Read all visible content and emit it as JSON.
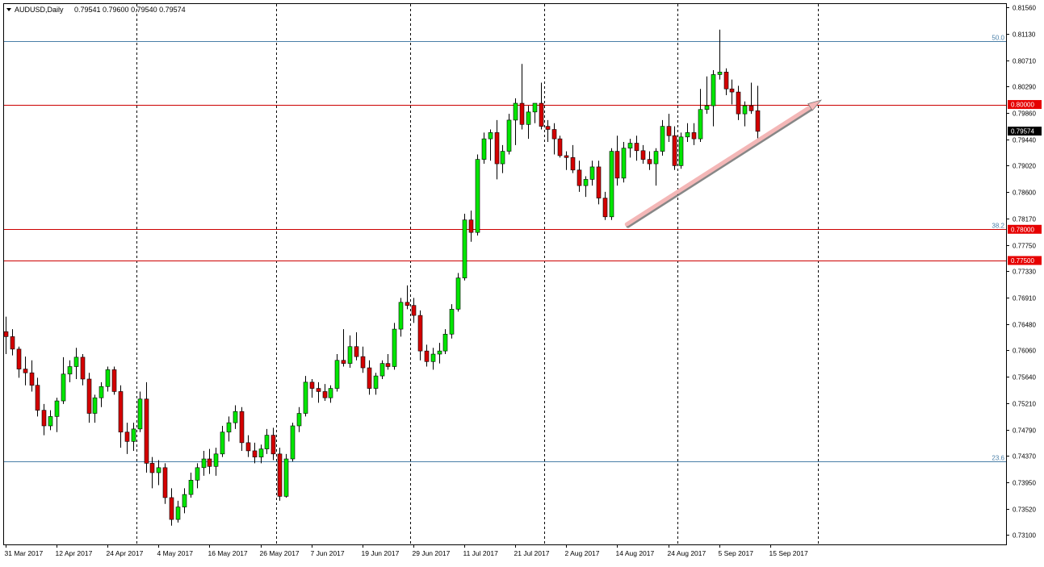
{
  "header": {
    "symbol": "AUDUSD,Daily",
    "ohlc": "0.79541 0.79600 0.79540 0.79574"
  },
  "colors": {
    "background": "#ffffff",
    "bull_candle": "#00e600",
    "bear_candle": "#d40000",
    "wick": "#000000",
    "fib_line": "#4a7fa8",
    "level_line": "#cc0000",
    "price_tag": "#e60000",
    "current_tag": "#000000",
    "trend_arrow": "#f4b7b7"
  },
  "chart_data": {
    "type": "candlestick",
    "title": "AUDUSD,Daily",
    "grid": "vertical dashed",
    "y_range": [
      0.7295,
      0.8161
    ],
    "y_ticks": [
      "0.81560",
      "0.81130",
      "0.80710",
      "0.80290",
      "0.79860",
      "0.79440",
      "0.79020",
      "0.78600",
      "0.78170",
      "0.77750",
      "0.77330",
      "0.76910",
      "0.76480",
      "0.76060",
      "0.75640",
      "0.75210",
      "0.74790",
      "0.74370",
      "0.73950",
      "0.73520",
      "0.73100"
    ],
    "x_labels": [
      {
        "label": "31 Mar 2017",
        "index": 0
      },
      {
        "label": "12 Apr 2017",
        "index": 8
      },
      {
        "label": "24 Apr 2017",
        "index": 16
      },
      {
        "label": "4 May 2017",
        "index": 24
      },
      {
        "label": "16 May 2017",
        "index": 32
      },
      {
        "label": "26 May 2017",
        "index": 40
      },
      {
        "label": "7 Jun 2017",
        "index": 48
      },
      {
        "label": "19 Jun 2017",
        "index": 56
      },
      {
        "label": "29 Jun 2017",
        "index": 64
      },
      {
        "label": "11 Jul 2017",
        "index": 72
      },
      {
        "label": "21 Jul 2017",
        "index": 80
      },
      {
        "label": "2 Aug 2017",
        "index": 88
      },
      {
        "label": "14 Aug 2017",
        "index": 96
      },
      {
        "label": "24 Aug 2017",
        "index": 104
      },
      {
        "label": "5 Sep 2017",
        "index": 112
      },
      {
        "label": "15 Sep 2017",
        "index": 120
      }
    ],
    "separator_indices": [
      20.5,
      42.5,
      63.5,
      84.5,
      105.5,
      127.5
    ],
    "fib_levels": [
      {
        "label": "50.0",
        "price": 0.8101
      },
      {
        "label": "38.2",
        "price": 0.78
      },
      {
        "label": "23.6",
        "price": 0.7428
      }
    ],
    "horizontal_levels": [
      {
        "label": "0.80000",
        "price": 0.8
      },
      {
        "label": "0.78000",
        "price": 0.78
      },
      {
        "label": "0.77500",
        "price": 0.775
      }
    ],
    "current_price": {
      "label": "0.79574",
      "price": 0.79574
    },
    "trend_arrow": {
      "from": {
        "index": 97.5,
        "price": 0.7808
      },
      "to": {
        "index": 128,
        "price": 0.8007
      }
    },
    "candles": [
      [
        0.7636,
        0.766,
        0.76,
        0.7628
      ],
      [
        0.7628,
        0.764,
        0.7598,
        0.7608
      ],
      [
        0.7608,
        0.7612,
        0.7562,
        0.7576
      ],
      [
        0.7576,
        0.7596,
        0.755,
        0.757
      ],
      [
        0.757,
        0.759,
        0.754,
        0.755
      ],
      [
        0.755,
        0.7562,
        0.75,
        0.751
      ],
      [
        0.751,
        0.752,
        0.747,
        0.7485
      ],
      [
        0.7485,
        0.751,
        0.7478,
        0.75
      ],
      [
        0.75,
        0.753,
        0.7475,
        0.7525
      ],
      [
        0.7525,
        0.7595,
        0.752,
        0.7568
      ],
      [
        0.7568,
        0.759,
        0.7555,
        0.758
      ],
      [
        0.758,
        0.761,
        0.756,
        0.7595
      ],
      [
        0.7595,
        0.76,
        0.755,
        0.756
      ],
      [
        0.756,
        0.757,
        0.749,
        0.7505
      ],
      [
        0.7505,
        0.7535,
        0.749,
        0.753
      ],
      [
        0.753,
        0.7555,
        0.7515,
        0.7548
      ],
      [
        0.7548,
        0.758,
        0.754,
        0.7575
      ],
      [
        0.7575,
        0.758,
        0.7535,
        0.754
      ],
      [
        0.754,
        0.755,
        0.745,
        0.7475
      ],
      [
        0.7475,
        0.749,
        0.744,
        0.746
      ],
      [
        0.746,
        0.749,
        0.7445,
        0.748
      ],
      [
        0.748,
        0.754,
        0.7475,
        0.7528
      ],
      [
        0.7528,
        0.7555,
        0.741,
        0.7425
      ],
      [
        0.7425,
        0.7435,
        0.7385,
        0.741
      ],
      [
        0.741,
        0.743,
        0.739,
        0.7418
      ],
      [
        0.7418,
        0.7425,
        0.736,
        0.737
      ],
      [
        0.737,
        0.7385,
        0.7325,
        0.7335
      ],
      [
        0.7335,
        0.7365,
        0.733,
        0.7355
      ],
      [
        0.7355,
        0.7385,
        0.7345,
        0.7375
      ],
      [
        0.7375,
        0.741,
        0.737,
        0.7398
      ],
      [
        0.7398,
        0.7425,
        0.7385,
        0.7418
      ],
      [
        0.7418,
        0.7445,
        0.7405,
        0.7432
      ],
      [
        0.7432,
        0.7448,
        0.7408,
        0.742
      ],
      [
        0.742,
        0.745,
        0.7405,
        0.744
      ],
      [
        0.744,
        0.7485,
        0.7435,
        0.7475
      ],
      [
        0.7475,
        0.75,
        0.746,
        0.749
      ],
      [
        0.749,
        0.7518,
        0.748,
        0.7508
      ],
      [
        0.7508,
        0.7515,
        0.7445,
        0.7458
      ],
      [
        0.7458,
        0.747,
        0.7435,
        0.7445
      ],
      [
        0.7445,
        0.7458,
        0.7425,
        0.7435
      ],
      [
        0.7435,
        0.7455,
        0.7425,
        0.7448
      ],
      [
        0.7448,
        0.748,
        0.744,
        0.747
      ],
      [
        0.747,
        0.7482,
        0.743,
        0.744
      ],
      [
        0.744,
        0.745,
        0.7365,
        0.7372
      ],
      [
        0.7372,
        0.744,
        0.737,
        0.7432
      ],
      [
        0.7432,
        0.749,
        0.7428,
        0.7485
      ],
      [
        0.7485,
        0.7515,
        0.7475,
        0.7505
      ],
      [
        0.7505,
        0.7565,
        0.75,
        0.7555
      ],
      [
        0.7555,
        0.756,
        0.753,
        0.7545
      ],
      [
        0.7545,
        0.7555,
        0.7522,
        0.754
      ],
      [
        0.754,
        0.7552,
        0.7525,
        0.753
      ],
      [
        0.753,
        0.755,
        0.7522,
        0.7545
      ],
      [
        0.7545,
        0.76,
        0.754,
        0.759
      ],
      [
        0.759,
        0.764,
        0.758,
        0.7585
      ],
      [
        0.7585,
        0.763,
        0.7578,
        0.7612
      ],
      [
        0.7612,
        0.7635,
        0.759,
        0.7596
      ],
      [
        0.7596,
        0.7612,
        0.757,
        0.7578
      ],
      [
        0.7578,
        0.759,
        0.7535,
        0.7545
      ],
      [
        0.7545,
        0.757,
        0.7535,
        0.7565
      ],
      [
        0.7565,
        0.759,
        0.756,
        0.7585
      ],
      [
        0.7585,
        0.76,
        0.7575,
        0.758
      ],
      [
        0.758,
        0.765,
        0.7575,
        0.764
      ],
      [
        0.764,
        0.769,
        0.7628,
        0.7683
      ],
      [
        0.7683,
        0.771,
        0.7672,
        0.7678
      ],
      [
        0.7678,
        0.769,
        0.765,
        0.7662
      ],
      [
        0.7662,
        0.767,
        0.759,
        0.7605
      ],
      [
        0.7605,
        0.7615,
        0.758,
        0.7588
      ],
      [
        0.7588,
        0.761,
        0.7575,
        0.76
      ],
      [
        0.76,
        0.7618,
        0.7585,
        0.7605
      ],
      [
        0.7605,
        0.764,
        0.76,
        0.7632
      ],
      [
        0.7632,
        0.768,
        0.7625,
        0.7672
      ],
      [
        0.7672,
        0.773,
        0.7668,
        0.7722
      ],
      [
        0.7722,
        0.7825,
        0.7718,
        0.7815
      ],
      [
        0.7815,
        0.783,
        0.778,
        0.7795
      ],
      [
        0.7795,
        0.792,
        0.779,
        0.7912
      ],
      [
        0.7912,
        0.7955,
        0.7905,
        0.7945
      ],
      [
        0.7945,
        0.796,
        0.791,
        0.7955
      ],
      [
        0.7955,
        0.7975,
        0.788,
        0.7905
      ],
      [
        0.7905,
        0.7935,
        0.789,
        0.7925
      ],
      [
        0.7925,
        0.7985,
        0.792,
        0.7975
      ],
      [
        0.7975,
        0.801,
        0.7935,
        0.8002
      ],
      [
        0.8002,
        0.8065,
        0.796,
        0.7968
      ],
      [
        0.7968,
        0.7998,
        0.7945,
        0.7988
      ],
      [
        0.7988,
        0.8,
        0.797,
        0.8002
      ],
      [
        0.8002,
        0.8035,
        0.796,
        0.7965
      ],
      [
        0.7965,
        0.7975,
        0.794,
        0.796
      ],
      [
        0.796,
        0.797,
        0.792,
        0.7945
      ],
      [
        0.7945,
        0.795,
        0.7915,
        0.7918
      ],
      [
        0.7918,
        0.7925,
        0.7895,
        0.7915
      ],
      [
        0.7915,
        0.7935,
        0.789,
        0.7895
      ],
      [
        0.7895,
        0.791,
        0.786,
        0.787
      ],
      [
        0.787,
        0.7885,
        0.7852,
        0.788
      ],
      [
        0.788,
        0.791,
        0.787,
        0.79
      ],
      [
        0.79,
        0.791,
        0.784,
        0.785
      ],
      [
        0.785,
        0.786,
        0.7815,
        0.782
      ],
      [
        0.782,
        0.793,
        0.7815,
        0.7925
      ],
      [
        0.7925,
        0.795,
        0.787,
        0.7882
      ],
      [
        0.7882,
        0.794,
        0.7875,
        0.793
      ],
      [
        0.793,
        0.7945,
        0.7915,
        0.7938
      ],
      [
        0.7938,
        0.795,
        0.791,
        0.7926
      ],
      [
        0.7926,
        0.7935,
        0.7905,
        0.7912
      ],
      [
        0.7912,
        0.7925,
        0.7895,
        0.7905
      ],
      [
        0.7905,
        0.793,
        0.787,
        0.7925
      ],
      [
        0.7925,
        0.7975,
        0.7918,
        0.7965
      ],
      [
        0.7965,
        0.7985,
        0.794,
        0.795
      ],
      [
        0.795,
        0.7965,
        0.7895,
        0.7902
      ],
      [
        0.7902,
        0.7955,
        0.7897,
        0.7948
      ],
      [
        0.7948,
        0.797,
        0.794,
        0.7955
      ],
      [
        0.7955,
        0.797,
        0.7935,
        0.7945
      ],
      [
        0.7945,
        0.8025,
        0.794,
        0.7992
      ],
      [
        0.7992,
        0.8045,
        0.7985,
        0.7998
      ],
      [
        0.7998,
        0.8055,
        0.7965,
        0.8048
      ],
      [
        0.8048,
        0.812,
        0.804,
        0.8052
      ],
      [
        0.8052,
        0.8058,
        0.8015,
        0.8025
      ],
      [
        0.8025,
        0.804,
        0.8,
        0.802
      ],
      [
        0.802,
        0.803,
        0.7975,
        0.7985
      ],
      [
        0.7985,
        0.8005,
        0.7965,
        0.7998
      ],
      [
        0.7998,
        0.8035,
        0.7985,
        0.799
      ],
      [
        0.799,
        0.803,
        0.7945,
        0.7957
      ]
    ]
  }
}
